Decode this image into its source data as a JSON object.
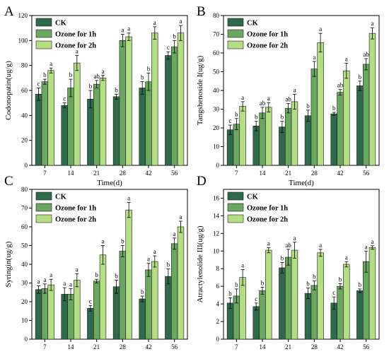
{
  "colors": {
    "ck": "#2e6b4a",
    "ozone1": "#6aa760",
    "ozone2": "#b3de83"
  },
  "chart_data": [
    {
      "type": "bar",
      "panel_letter": "A",
      "ylabel": "Codonopatin(ug/g)",
      "xlabel": "Time(d)",
      "categories": [
        "7",
        "14",
        "21",
        "28",
        "42",
        "56"
      ],
      "ylim": [
        0,
        120
      ],
      "yticks": [
        "0",
        "20",
        "40",
        "60",
        "80",
        "100",
        "120"
      ],
      "legend": [
        "CK",
        "Ozone for 1h",
        "Ozone for 2h"
      ],
      "legend_position": "top-left",
      "series": [
        {
          "name": "CK",
          "values": [
            57,
            48,
            53,
            55,
            62,
            88
          ],
          "errors": [
            5,
            2,
            7,
            2,
            5,
            3
          ],
          "labels": [
            "c",
            "c",
            "b",
            "b",
            "b",
            "c"
          ]
        },
        {
          "name": "Ozone for 1h",
          "values": [
            67,
            62,
            65,
            100,
            67,
            95
          ],
          "errors": [
            2,
            7,
            3,
            5,
            7,
            5
          ],
          "labels": [
            "b",
            "b",
            "ab",
            "a",
            "b",
            "b"
          ]
        },
        {
          "name": "Ozone for 2h",
          "values": [
            76,
            82,
            70,
            103,
            106,
            106
          ],
          "errors": [
            2,
            6,
            2,
            3,
            5,
            6
          ],
          "labels": [
            "a",
            "a",
            "a",
            "a",
            "a",
            "a"
          ]
        }
      ]
    },
    {
      "type": "bar",
      "panel_letter": "B",
      "ylabel": "Tangshenoside I(ug/g)",
      "xlabel": "Time(d)",
      "categories": [
        "7",
        "14",
        "21",
        "28",
        "42",
        "56"
      ],
      "ylim": [
        0,
        80
      ],
      "yticks": [
        "0",
        "10",
        "20",
        "30",
        "40",
        "50",
        "60",
        "70",
        "80"
      ],
      "legend": [
        "CK",
        "Ozone for 1h",
        "Ozone for 2h"
      ],
      "legend_position": "top-left",
      "series": [
        {
          "name": "CK",
          "values": [
            19,
            21,
            20.5,
            26.5,
            27.5,
            42.5
          ],
          "errors": [
            2.5,
            2.5,
            3,
            3,
            0.8,
            2.5
          ],
          "labels": [
            "c",
            "b",
            "b",
            "b",
            "b",
            "b"
          ]
        },
        {
          "name": "Ozone for 1h",
          "values": [
            22,
            28,
            30.5,
            51.5,
            39,
            54
          ],
          "errors": [
            3,
            3,
            2.5,
            4,
            1.5,
            3
          ],
          "labels": [
            "b",
            "ab",
            "ab",
            "a",
            "ab",
            "ab"
          ]
        },
        {
          "name": "Ozone for 2h",
          "values": [
            31.5,
            31,
            34,
            65.5,
            50.5,
            70.5
          ],
          "errors": [
            2.5,
            2.5,
            4,
            5,
            4,
            3
          ],
          "labels": [
            "a",
            "a",
            "a",
            "a",
            "a",
            "a"
          ]
        }
      ]
    },
    {
      "type": "bar",
      "panel_letter": "C",
      "ylabel": "Syringin(ug/g)",
      "xlabel": "Time(d)",
      "categories": [
        "7",
        "14",
        "21",
        "28",
        "42",
        "56"
      ],
      "ylim": [
        0,
        80
      ],
      "yticks": [
        "0",
        "10",
        "20",
        "30",
        "40",
        "50",
        "60",
        "70",
        "80"
      ],
      "legend": [
        "CK",
        "Ozone for 1h",
        "Ozone for 2h"
      ],
      "legend_position": "top-left",
      "series": [
        {
          "name": "CK",
          "values": [
            26.5,
            24,
            16.5,
            28,
            21.5,
            33.5
          ],
          "errors": [
            2,
            3.5,
            1.5,
            3.5,
            1.5,
            4
          ],
          "labels": [
            "a",
            "a",
            "c",
            "b",
            "b",
            "b"
          ]
        },
        {
          "name": "Ozone for 1h",
          "values": [
            27,
            24,
            31,
            47,
            37,
            51
          ],
          "errors": [
            2.5,
            3,
            1,
            3,
            3.5,
            3
          ],
          "labels": [
            "a",
            "a",
            "b",
            "b",
            "a",
            "a"
          ]
        },
        {
          "name": "Ozone for 2h",
          "values": [
            29,
            31.5,
            45,
            69,
            41.5,
            60
          ],
          "errors": [
            3,
            3.5,
            5,
            4,
            3,
            3
          ],
          "labels": [
            "a",
            "a",
            "a",
            "a",
            "a",
            "a"
          ]
        }
      ]
    },
    {
      "type": "bar",
      "panel_letter": "D",
      "ylabel": "Atractylenolide III(ug/g)",
      "xlabel": "Time(d)",
      "categories": [
        "7",
        "14",
        "21",
        "28",
        "42",
        "56"
      ],
      "ylim": [
        0,
        17
      ],
      "yticks": [
        "0",
        "2",
        "4",
        "6",
        "8",
        "10",
        "12",
        "14",
        "16"
      ],
      "legend": [
        "CK",
        "Ozone for 1h",
        "Ozone for 2h"
      ],
      "legend_position": "top-left",
      "series": [
        {
          "name": "CK",
          "values": [
            4.1,
            3.7,
            8.1,
            5.2,
            4.1,
            5.5
          ],
          "errors": [
            0.6,
            0.4,
            0.6,
            0.6,
            0.7,
            0.2
          ],
          "labels": [
            "b",
            "c",
            "b",
            "b",
            "c",
            "b"
          ]
        },
        {
          "name": "Ozone for 1h",
          "values": [
            4.9,
            5.5,
            9.3,
            6.1,
            6.0,
            8.8
          ],
          "errors": [
            0.8,
            0.4,
            0.9,
            0.5,
            0.3,
            1.2
          ],
          "labels": [
            "b",
            "b",
            "ab",
            "b",
            "b",
            "a"
          ]
        },
        {
          "name": "Ozone for 2h",
          "values": [
            7.0,
            10.1,
            10.1,
            9.8,
            8.5,
            10.4
          ],
          "errors": [
            0.9,
            0.3,
            0.9,
            0.4,
            0.3,
            0.2
          ],
          "labels": [
            "a",
            "a",
            "a",
            "a",
            "a",
            "a"
          ]
        }
      ]
    }
  ]
}
